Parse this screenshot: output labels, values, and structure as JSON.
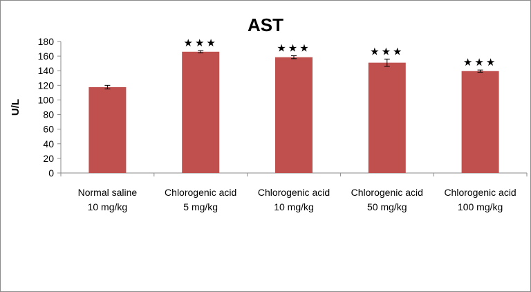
{
  "chart_data": {
    "type": "bar",
    "title": "AST",
    "xlabel": "",
    "ylabel": "U/L",
    "ylim": [
      0,
      180
    ],
    "yticks": [
      0,
      20,
      40,
      60,
      80,
      100,
      120,
      140,
      160,
      180
    ],
    "categories": [
      [
        "Normal saline",
        "10 mg/kg"
      ],
      [
        "Chlorogenic acid",
        "5 mg/kg"
      ],
      [
        "Chlorogenic acid",
        "10 mg/kg"
      ],
      [
        "Chlorogenic acid",
        "50 mg/kg"
      ],
      [
        "Chlorogenic acid",
        "100 mg/kg"
      ]
    ],
    "values": [
      117.5,
      166,
      158.5,
      151,
      139.5
    ],
    "errors": [
      2.5,
      1.5,
      2,
      5,
      1.5
    ],
    "significance": [
      "",
      "★★★",
      "★★★",
      "★★★",
      "★★★"
    ],
    "bar_color": "#c0504d",
    "grid": false,
    "legend": "none"
  }
}
